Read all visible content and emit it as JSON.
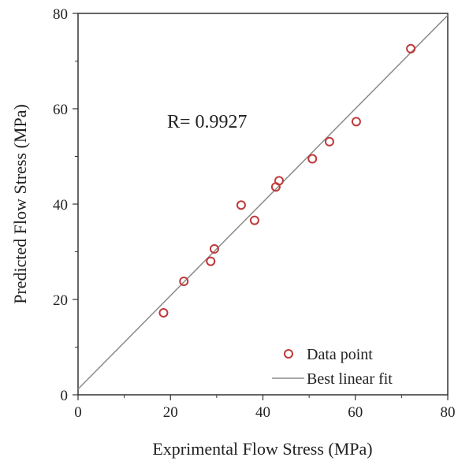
{
  "chart_data": {
    "type": "scatter",
    "title": "",
    "xlabel": "Exprimental Flow Stress (MPa)",
    "ylabel": "Predicted Flow Stress (MPa)",
    "xlim": [
      0,
      80
    ],
    "ylim": [
      0,
      80
    ],
    "xticks": [
      "0",
      "20",
      "40",
      "60",
      "80"
    ],
    "yticks": [
      "0",
      "20",
      "40",
      "60",
      "80"
    ],
    "grid": false,
    "legend_position": "bottom-right",
    "series": [
      {
        "name": "Data point",
        "kind": "scatter",
        "marker": "open-circle",
        "color": "#c0393b",
        "x": [
          18.5,
          22.9,
          28.7,
          29.5,
          35.3,
          38.2,
          42.8,
          43.5,
          50.7,
          54.4,
          60.2,
          72.0
        ],
        "y": [
          17.2,
          23.8,
          28.0,
          30.6,
          39.8,
          36.6,
          43.6,
          44.9,
          49.5,
          53.1,
          57.3,
          72.6
        ]
      },
      {
        "name": "Best linear fit",
        "kind": "line",
        "color": "#8a8a8a",
        "x": [
          0,
          80
        ],
        "y": [
          1.2,
          79.6
        ]
      }
    ],
    "annotations": [
      {
        "text": "R= 0.9927"
      }
    ]
  }
}
